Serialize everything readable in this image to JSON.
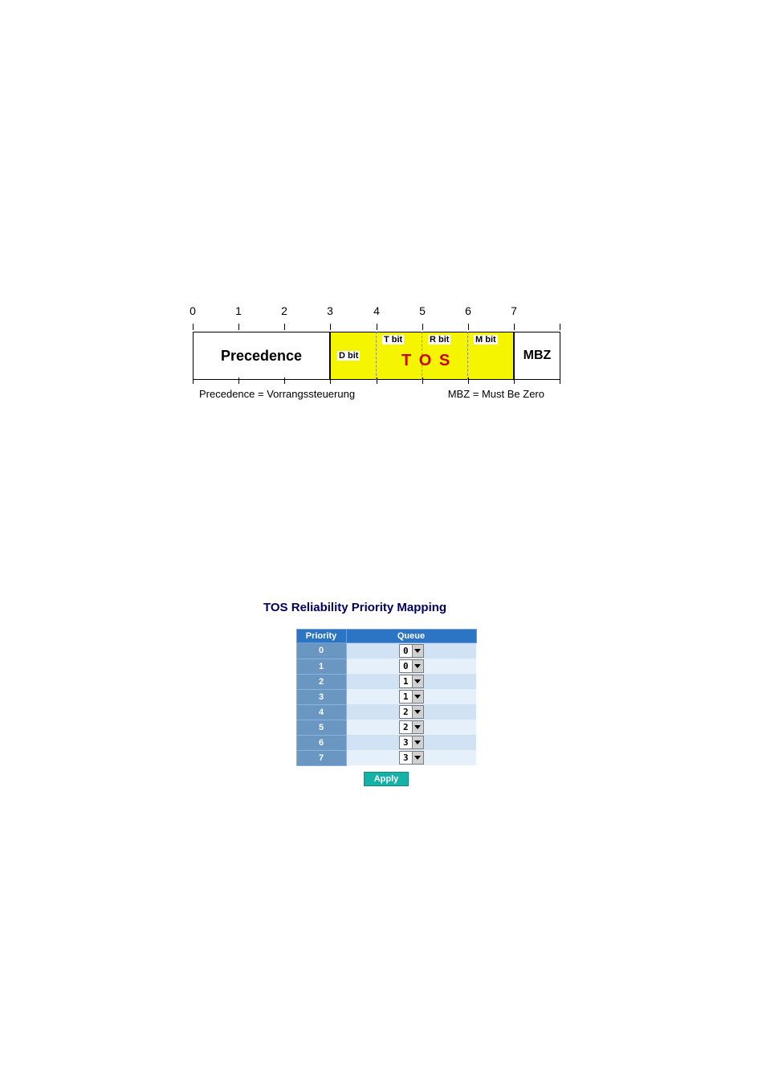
{
  "diagram": {
    "scale_numbers": [
      "0",
      "1",
      "2",
      "3",
      "4",
      "5",
      "6",
      "7"
    ],
    "precedence_label": "Precedence",
    "tos_label_big": "T O S",
    "tos_bits": {
      "d": "D bit",
      "t": "T bit",
      "r": "R bit",
      "m": "M bit"
    },
    "mbz_label": "MBZ",
    "colors": {
      "tos_bg": "#f5f500",
      "outline": "#000000",
      "tos_text": "#d00000"
    },
    "legend_left": "Precedence = Vorrangssteuerung",
    "legend_right": "MBZ = Must Be Zero"
  },
  "table": {
    "title": "TOS Reliability Priority Mapping",
    "head_priority": "Priority",
    "head_queue": "Queue",
    "rows": [
      {
        "priority": "0",
        "queue": "0"
      },
      {
        "priority": "1",
        "queue": "0"
      },
      {
        "priority": "2",
        "queue": "1"
      },
      {
        "priority": "3",
        "queue": "1"
      },
      {
        "priority": "4",
        "queue": "2"
      },
      {
        "priority": "5",
        "queue": "2"
      },
      {
        "priority": "6",
        "queue": "3"
      },
      {
        "priority": "7",
        "queue": "3"
      }
    ],
    "apply_label": "Apply",
    "colors": {
      "header_bg": "#2c74c4",
      "priority_bg": "#6a96c2",
      "row_odd_bg": "#d0e2f4",
      "row_even_bg": "#e6f0fa",
      "apply_bg": "#15b2a8"
    }
  }
}
